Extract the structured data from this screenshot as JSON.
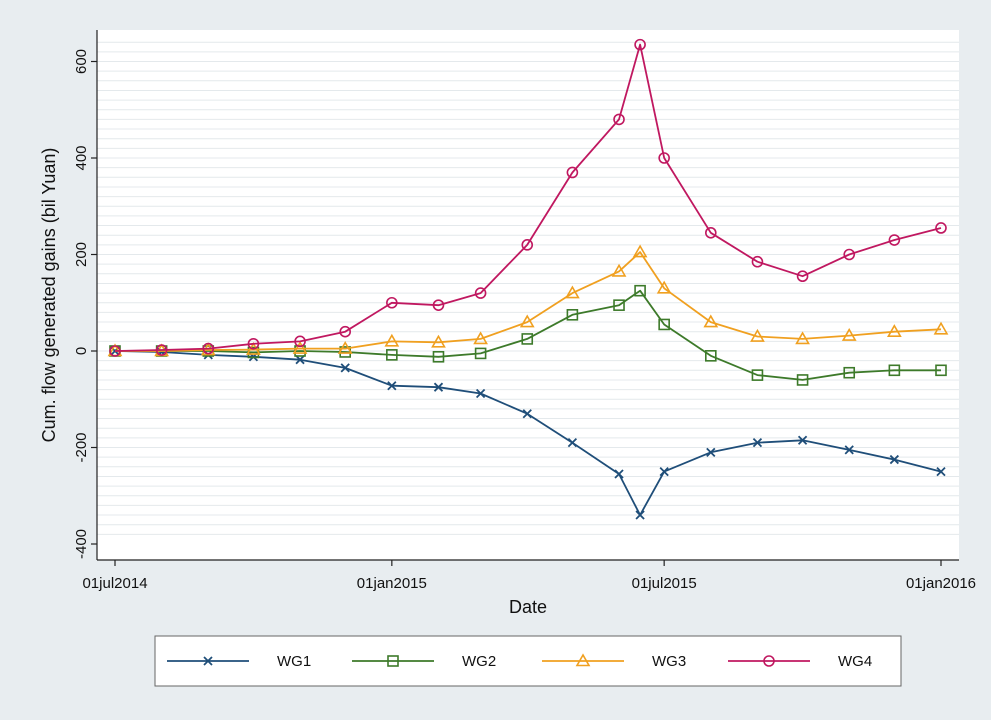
{
  "chart_data": {
    "type": "line",
    "xlabel": "Date",
    "ylabel": "Cum. flow generated gains (bil Yuan)",
    "x_ticks": [
      "01jul2014",
      "01jan2015",
      "01jul2015",
      "01jan2016"
    ],
    "y_ticks": [
      -400,
      -200,
      0,
      200,
      400,
      600
    ],
    "xlim": [
      "2014-07-01",
      "2016-01-01"
    ],
    "ylim": [
      -400,
      650
    ],
    "grid": true,
    "legend_position": "bottom",
    "colors": {
      "WG1": "#1f4e79",
      "WG2": "#3d7a2a",
      "WG3": "#f0a020",
      "WG4": "#c01860"
    },
    "series": [
      {
        "name": "WG1",
        "marker": "x",
        "x": [
          "2014-07-01",
          "2014-08-01",
          "2014-09-01",
          "2014-10-01",
          "2014-11-01",
          "2014-12-01",
          "2015-01-01",
          "2015-02-01",
          "2015-03-01",
          "2015-04-01",
          "2015-05-01",
          "2015-06-01",
          "2015-06-15",
          "2015-07-01",
          "2015-08-01",
          "2015-09-01",
          "2015-10-01",
          "2015-11-01",
          "2015-12-01",
          "2016-01-01"
        ],
        "y": [
          0,
          -2,
          -8,
          -12,
          -18,
          -35,
          -72,
          -75,
          -88,
          -130,
          -190,
          -255,
          -340,
          -250,
          -210,
          -190,
          -185,
          -205,
          -225,
          -250
        ]
      },
      {
        "name": "WG2",
        "marker": "square",
        "x": [
          "2014-07-01",
          "2014-08-01",
          "2014-09-01",
          "2014-10-01",
          "2014-11-01",
          "2014-12-01",
          "2015-01-01",
          "2015-02-01",
          "2015-03-01",
          "2015-04-01",
          "2015-05-01",
          "2015-06-01",
          "2015-06-15",
          "2015-07-01",
          "2015-08-01",
          "2015-09-01",
          "2015-10-01",
          "2015-11-01",
          "2015-12-01",
          "2016-01-01"
        ],
        "y": [
          0,
          0,
          0,
          -3,
          0,
          -2,
          -8,
          -12,
          -5,
          25,
          75,
          95,
          125,
          55,
          -10,
          -50,
          -60,
          -45,
          -40,
          -40
        ]
      },
      {
        "name": "WG3",
        "marker": "triangle",
        "x": [
          "2014-07-01",
          "2014-08-01",
          "2014-09-01",
          "2014-10-01",
          "2014-11-01",
          "2014-12-01",
          "2015-01-01",
          "2015-02-01",
          "2015-03-01",
          "2015-04-01",
          "2015-05-01",
          "2015-06-01",
          "2015-06-15",
          "2015-07-01",
          "2015-08-01",
          "2015-09-01",
          "2015-10-01",
          "2015-11-01",
          "2015-12-01",
          "2016-01-01"
        ],
        "y": [
          0,
          0,
          2,
          3,
          5,
          5,
          20,
          18,
          25,
          60,
          120,
          165,
          205,
          130,
          60,
          30,
          25,
          32,
          40,
          45
        ]
      },
      {
        "name": "WG4",
        "marker": "circle",
        "x": [
          "2014-07-01",
          "2014-08-01",
          "2014-09-01",
          "2014-10-01",
          "2014-11-01",
          "2014-12-01",
          "2015-01-01",
          "2015-02-01",
          "2015-03-01",
          "2015-04-01",
          "2015-05-01",
          "2015-06-01",
          "2015-06-15",
          "2015-07-01",
          "2015-08-01",
          "2015-09-01",
          "2015-10-01",
          "2015-11-01",
          "2015-12-01",
          "2016-01-01"
        ],
        "y": [
          0,
          2,
          5,
          15,
          20,
          40,
          100,
          95,
          120,
          220,
          370,
          480,
          635,
          400,
          245,
          185,
          155,
          200,
          230,
          255
        ]
      }
    ]
  }
}
